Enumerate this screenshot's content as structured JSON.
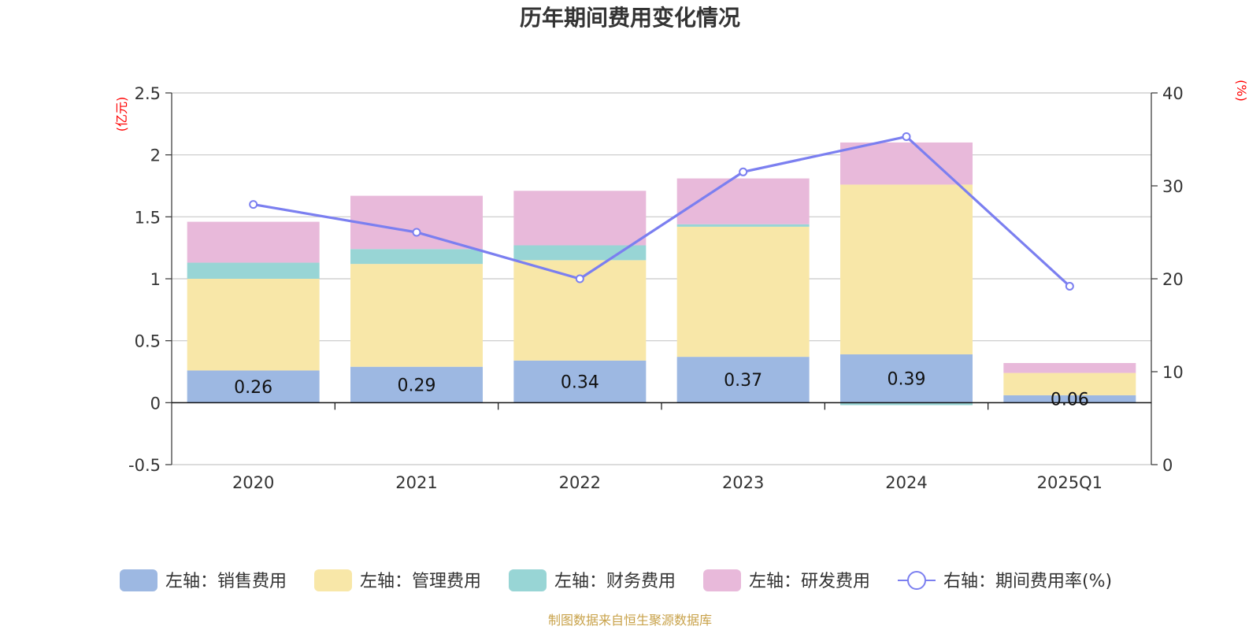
{
  "chart_data": {
    "type": "bar",
    "title": "历年期间费用变化情况",
    "categories": [
      "2020",
      "2021",
      "2022",
      "2023",
      "2024",
      "2025Q1"
    ],
    "left_axis": {
      "unit": "(亿元)",
      "range": [
        -0.5,
        2.5
      ],
      "ticks": [
        "-0.5",
        "0",
        "0.5",
        "1",
        "1.5",
        "2",
        "2.5"
      ]
    },
    "right_axis": {
      "unit": "(%)",
      "range": [
        0,
        40
      ],
      "ticks": [
        "0",
        "10",
        "20",
        "30",
        "40"
      ]
    },
    "series": [
      {
        "name": "左轴：销售费用",
        "type": "bar",
        "color": "#9db8e2",
        "values": [
          0.26,
          0.29,
          0.34,
          0.37,
          0.39,
          0.06
        ],
        "labels": [
          "0.26",
          "0.29",
          "0.34",
          "0.37",
          "0.39",
          "0.06"
        ]
      },
      {
        "name": "左轴：管理费用",
        "type": "bar",
        "color": "#f8e7a8",
        "values": [
          0.74,
          0.83,
          0.81,
          1.05,
          1.37,
          0.18
        ]
      },
      {
        "name": "左轴：财务费用",
        "type": "bar",
        "color": "#98d5d5",
        "values": [
          0.13,
          0.12,
          0.12,
          0.02,
          -0.02,
          0.0
        ]
      },
      {
        "name": "左轴：研发费用",
        "type": "bar",
        "color": "#e8b9da",
        "values": [
          0.33,
          0.43,
          0.44,
          0.37,
          0.34,
          0.08
        ]
      },
      {
        "name": "右轴：期间费用率(%)",
        "type": "line",
        "color": "#7b7ff0",
        "values": [
          28.0,
          25.0,
          20.0,
          31.5,
          35.3,
          19.2
        ]
      }
    ],
    "grid": true,
    "legend_position": "bottom"
  },
  "source_note": "制图数据来自恒生聚源数据库"
}
